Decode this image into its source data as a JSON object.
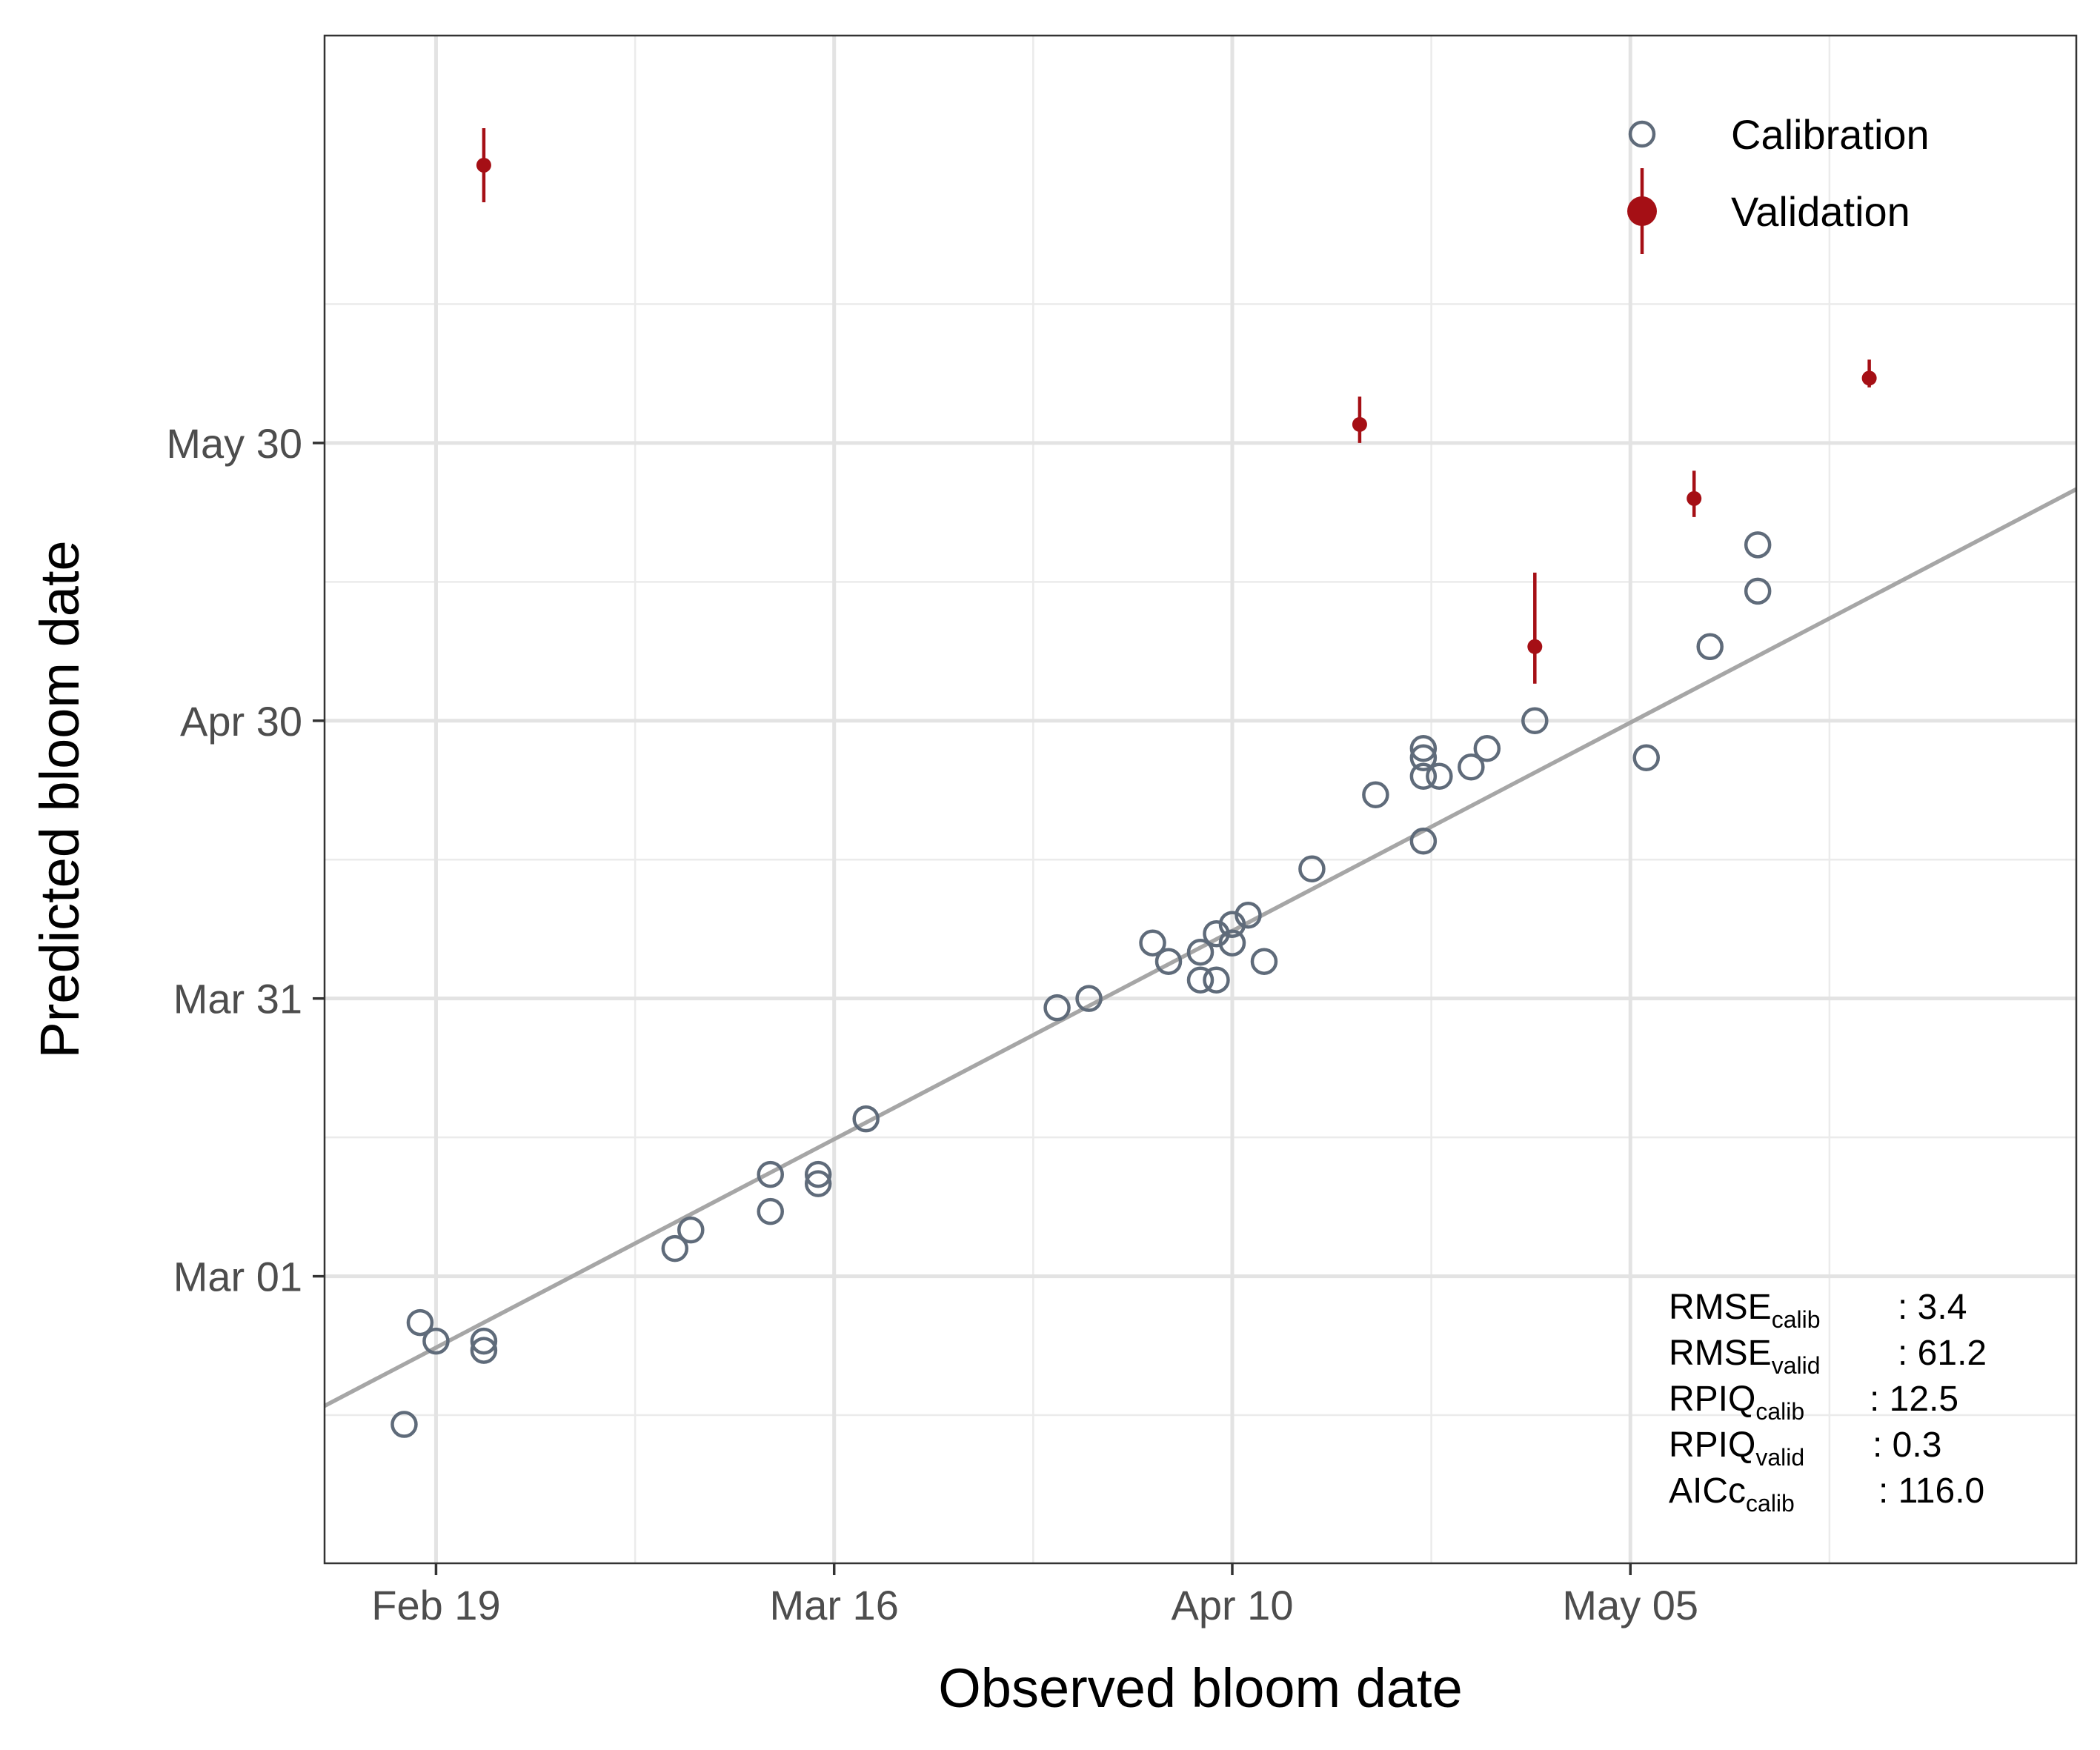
{
  "chart_data": {
    "type": "scatter",
    "xlabel": "Observed bloom date",
    "ylabel": "Predicted bloom date",
    "x_axis": {
      "type": "date",
      "range": [
        "2021-02-12",
        "2021-06-02"
      ],
      "ticks": [
        "2021-02-19",
        "2021-03-16",
        "2021-04-10",
        "2021-05-05"
      ],
      "tick_labels": [
        "Feb 19",
        "Mar 16",
        "Apr 10",
        "May 05"
      ]
    },
    "y_axis": {
      "type": "date",
      "range": [
        "2021-01-29",
        "2021-07-13"
      ],
      "ticks": [
        "2021-03-01",
        "2021-03-31",
        "2021-04-30",
        "2021-05-30"
      ],
      "tick_labels": [
        "Mar 01",
        "Mar 31",
        "Apr 30",
        "May 30"
      ]
    },
    "grid": true,
    "legend": {
      "position": "top-right",
      "entries": [
        {
          "name": "Calibration",
          "marker": "open-circle",
          "color": "#5f6b7a"
        },
        {
          "name": "Validation",
          "marker": "filled-circle-errorbar",
          "color": "#a50f15"
        }
      ]
    },
    "series": [
      {
        "name": "Calibration",
        "color": "#5f6b7a",
        "points": [
          {
            "x": "2021-02-17",
            "y": "2021-02-13"
          },
          {
            "x": "2021-02-18",
            "y": "2021-02-24"
          },
          {
            "x": "2021-02-19",
            "y": "2021-02-22"
          },
          {
            "x": "2021-02-22",
            "y": "2021-02-22"
          },
          {
            "x": "2021-02-22",
            "y": "2021-02-21"
          },
          {
            "x": "2021-03-06",
            "y": "2021-03-04"
          },
          {
            "x": "2021-03-07",
            "y": "2021-03-06"
          },
          {
            "x": "2021-03-12",
            "y": "2021-03-08"
          },
          {
            "x": "2021-03-12",
            "y": "2021-03-12"
          },
          {
            "x": "2021-03-15",
            "y": "2021-03-11"
          },
          {
            "x": "2021-03-15",
            "y": "2021-03-12"
          },
          {
            "x": "2021-03-18",
            "y": "2021-03-18"
          },
          {
            "x": "2021-03-30",
            "y": "2021-03-30"
          },
          {
            "x": "2021-04-01",
            "y": "2021-03-31"
          },
          {
            "x": "2021-04-05",
            "y": "2021-04-06"
          },
          {
            "x": "2021-04-06",
            "y": "2021-04-04"
          },
          {
            "x": "2021-04-08",
            "y": "2021-04-02"
          },
          {
            "x": "2021-04-08",
            "y": "2021-04-05"
          },
          {
            "x": "2021-04-09",
            "y": "2021-04-02"
          },
          {
            "x": "2021-04-09",
            "y": "2021-04-07"
          },
          {
            "x": "2021-04-10",
            "y": "2021-04-06"
          },
          {
            "x": "2021-04-10",
            "y": "2021-04-08"
          },
          {
            "x": "2021-04-11",
            "y": "2021-04-09"
          },
          {
            "x": "2021-04-12",
            "y": "2021-04-04"
          },
          {
            "x": "2021-04-15",
            "y": "2021-04-14"
          },
          {
            "x": "2021-04-19",
            "y": "2021-04-22"
          },
          {
            "x": "2021-04-22",
            "y": "2021-04-17"
          },
          {
            "x": "2021-04-22",
            "y": "2021-04-24"
          },
          {
            "x": "2021-04-22",
            "y": "2021-04-26"
          },
          {
            "x": "2021-04-22",
            "y": "2021-04-27"
          },
          {
            "x": "2021-04-23",
            "y": "2021-04-24"
          },
          {
            "x": "2021-04-25",
            "y": "2021-04-25"
          },
          {
            "x": "2021-04-26",
            "y": "2021-04-27"
          },
          {
            "x": "2021-04-29",
            "y": "2021-04-30"
          },
          {
            "x": "2021-05-06",
            "y": "2021-04-26"
          },
          {
            "x": "2021-05-10",
            "y": "2021-05-08"
          },
          {
            "x": "2021-05-13",
            "y": "2021-05-14"
          },
          {
            "x": "2021-05-13",
            "y": "2021-05-19"
          }
        ]
      },
      {
        "name": "Validation",
        "color": "#a50f15",
        "points": [
          {
            "x": "2021-02-22",
            "y": "2021-06-29",
            "ymin": "2021-06-25",
            "ymax": "2021-07-03"
          },
          {
            "x": "2021-04-18",
            "y": "2021-06-01",
            "ymin": "2021-05-30",
            "ymax": "2021-06-04"
          },
          {
            "x": "2021-04-29",
            "y": "2021-05-08",
            "ymin": "2021-05-04",
            "ymax": "2021-05-16"
          },
          {
            "x": "2021-05-09",
            "y": "2021-05-24",
            "ymin": "2021-05-22",
            "ymax": "2021-05-27"
          },
          {
            "x": "2021-05-20",
            "y": "2021-06-06",
            "ymin": "2021-06-05",
            "ymax": "2021-06-08"
          }
        ]
      }
    ],
    "fit_line": {
      "color": "#a6a6a6",
      "from": {
        "x": "2021-02-12",
        "y": "2021-02-15"
      },
      "to": {
        "x": "2021-06-02",
        "y": "2021-05-25"
      }
    },
    "annotations": [
      {
        "label": "RMSE",
        "sub": "calib",
        "value": ": 3.4"
      },
      {
        "label": "RMSE",
        "sub": "valid",
        "value": ": 61.2"
      },
      {
        "label": "RPIQ",
        "sub": "calib",
        "value": ": 12.5"
      },
      {
        "label": "RPIQ",
        "sub": "valid",
        "value": ": 0.3"
      },
      {
        "label": "AICc",
        "sub": "calib",
        "value": ": 116.0"
      }
    ]
  }
}
